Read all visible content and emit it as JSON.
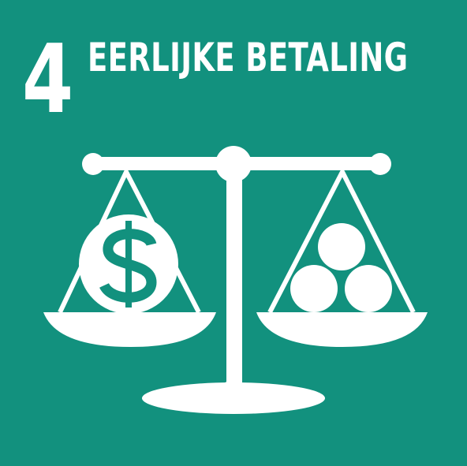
{
  "goal": {
    "number": "4",
    "title": "EERLIJKE BETALING"
  },
  "colors": {
    "background": "#12917E",
    "foreground": "#FFFFFF"
  },
  "icons": {
    "illustration": "balance-scale-icon",
    "left_pan_item": "dollar-coin-icon",
    "right_pan_item": "coin-stack-icon"
  }
}
